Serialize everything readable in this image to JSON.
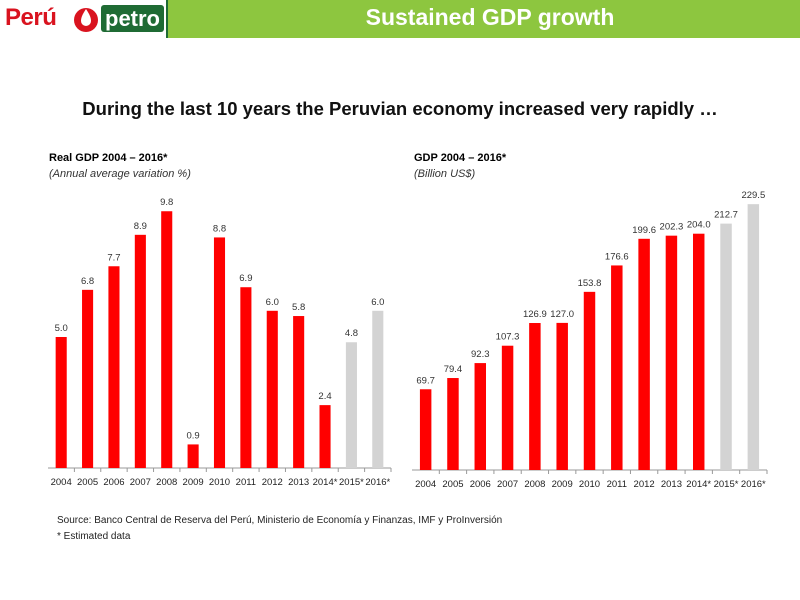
{
  "header": {
    "logo_text_left": "Perú",
    "logo_text_right": "petro",
    "title": "Sustained GDP growth"
  },
  "headline": "During the last 10 years the Peruvian economy increased very rapidly …",
  "colors": {
    "header_green": "#8dc63f",
    "logo_green": "#1f6b34",
    "bar_actual": "#ff0000",
    "bar_estimate": "#d3d3d3"
  },
  "chart_data": [
    {
      "type": "bar",
      "title": "Real GDP  2004 – 2016*",
      "subtitle": "(Annual average variation %)",
      "categories": [
        "2004",
        "2005",
        "2006",
        "2007",
        "2008",
        "2009",
        "2010",
        "2011",
        "2012",
        "2013",
        "2014*",
        "2015*",
        "2016*"
      ],
      "values": [
        5.0,
        6.8,
        7.7,
        8.9,
        9.8,
        0.9,
        8.8,
        6.9,
        6.0,
        5.8,
        2.4,
        4.8,
        6.0
      ],
      "value_labels": [
        "5.0",
        "6.8",
        "7.7",
        "8.9",
        "9.8",
        "0.9",
        "8.8",
        "6.9",
        "6.0",
        "5.8",
        "2.4",
        "4.8",
        "6.0"
      ],
      "estimated": [
        false,
        false,
        false,
        false,
        false,
        false,
        false,
        false,
        false,
        false,
        false,
        true,
        true
      ],
      "ylim": [
        0,
        10
      ],
      "grid": false
    },
    {
      "type": "bar",
      "title": "GDP  2004 – 2016*",
      "subtitle": "(Billion US$)",
      "categories": [
        "2004",
        "2005",
        "2006",
        "2007",
        "2008",
        "2009",
        "2010",
        "2011",
        "2012",
        "2013",
        "2014*",
        "2015*",
        "2016*"
      ],
      "values": [
        69.7,
        79.4,
        92.3,
        107.3,
        126.9,
        127.0,
        153.8,
        176.6,
        199.6,
        202.3,
        204.0,
        212.7,
        229.5
      ],
      "value_labels": [
        "69.7",
        "79.4",
        "92.3",
        "107.3",
        "126.9",
        "127.0",
        "153.8",
        "176.6",
        "199.6",
        "202.3",
        "204.0",
        "212.7",
        "229.5"
      ],
      "estimated": [
        false,
        false,
        false,
        false,
        false,
        false,
        false,
        false,
        false,
        false,
        false,
        true,
        true
      ],
      "ylim": [
        0,
        240
      ],
      "grid": false
    }
  ],
  "source": "Source: Banco Central de Reserva del Perú, Ministerio de Economía y Finanzas, IMF y ProInversión",
  "note": "* Estimated data"
}
